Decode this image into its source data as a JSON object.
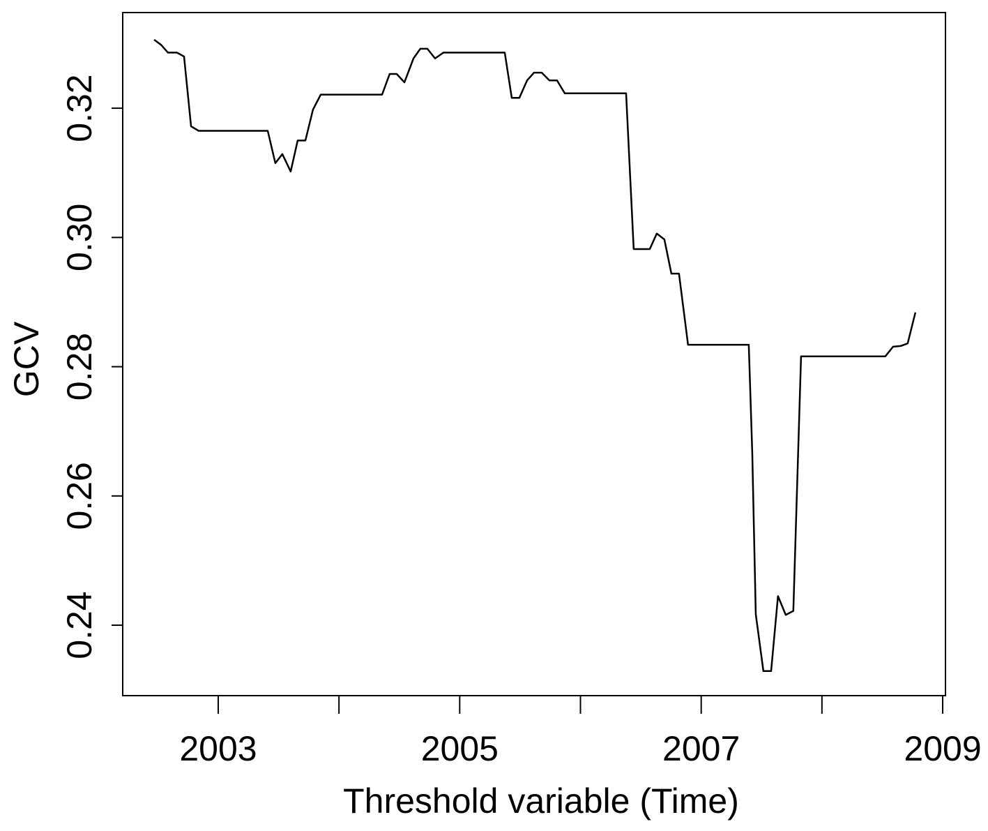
{
  "chart_data": {
    "type": "line",
    "x_label": "Threshold variable (Time)",
    "y_label": "GCV",
    "xlim": [
      2002.209,
      2009.023
    ],
    "xticks": [
      2003,
      2005,
      2007,
      2009
    ],
    "xminor_ticks": [
      2004,
      2006,
      2008
    ],
    "ylim": [
      0.2291,
      0.3348
    ],
    "yticks": [
      0.24,
      0.26,
      0.28,
      {
        "value": 0.3,
        "label": "0.30"
      },
      0.32
    ],
    "series": [
      {
        "color": "#000000",
        "x": [
          2002.469,
          2002.527,
          2002.584,
          2002.659,
          2002.717,
          2002.775,
          2002.838,
          2003.41,
          2003.473,
          2003.531,
          2003.6,
          2003.658,
          2003.722,
          2003.785,
          2003.849,
          2004.357,
          2004.42,
          2004.478,
          2004.542,
          2004.617,
          2004.674,
          2004.732,
          2004.796,
          2004.865,
          2005.373,
          2005.431,
          2005.494,
          2005.558,
          2005.615,
          2005.679,
          2005.743,
          2005.806,
          2005.87,
          2006.378,
          2006.441,
          2006.574,
          2006.632,
          2006.695,
          2006.753,
          2006.816,
          2006.891,
          2007.394,
          2007.423,
          2007.452,
          2007.515,
          2007.579,
          2007.636,
          2007.7,
          2007.763,
          2007.827,
          2008.525,
          2008.589,
          2008.652,
          2008.71,
          2008.774
        ],
        "values": [
          0.3306,
          0.3298,
          0.3286,
          0.3286,
          0.328,
          0.3172,
          0.3165,
          0.3165,
          0.3115,
          0.3129,
          0.3102,
          0.315,
          0.315,
          0.3198,
          0.3221,
          0.3221,
          0.3253,
          0.3253,
          0.324,
          0.3277,
          0.3292,
          0.3292,
          0.3277,
          0.3286,
          0.3286,
          0.3216,
          0.3216,
          0.3243,
          0.3255,
          0.3255,
          0.3243,
          0.3243,
          0.3223,
          0.3223,
          0.2982,
          0.2982,
          0.3006,
          0.2997,
          0.2944,
          0.2944,
          0.2834,
          0.2834,
          0.2666,
          0.2417,
          0.2329,
          0.2329,
          0.2445,
          0.2416,
          0.2422,
          0.2816,
          0.2816,
          0.2831,
          0.2832,
          0.2836,
          0.2884
        ]
      }
    ]
  }
}
